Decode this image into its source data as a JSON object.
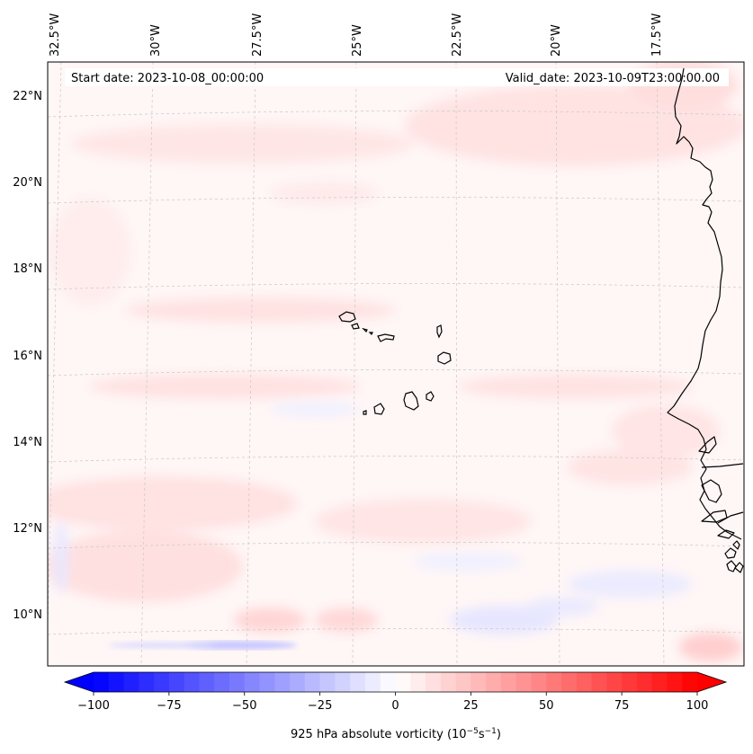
{
  "header": {
    "start_date": "Start date: 2023-10-08_00:00:00",
    "valid_date": "Valid_date: 2023-10-09T23:00:00.00"
  },
  "longitude_labels": [
    "32.5°W",
    "30°W",
    "27.5°W",
    "25°W",
    "22.5°W",
    "20°W",
    "17.5°W"
  ],
  "latitude_labels": [
    "22°N",
    "20°N",
    "18°N",
    "16°N",
    "14°N",
    "12°N",
    "10°N"
  ],
  "colorbar": {
    "label": "925 hPa absolute vorticity (10",
    "label_exp1": "−5",
    "label_mid": "s",
    "label_exp2": "−1",
    "label_end": ")",
    "ticks": [
      "−100",
      "−75",
      "−50",
      "−25",
      "0",
      "25",
      "50",
      "75",
      "100"
    ],
    "range": [
      -100,
      100
    ],
    "step": 5,
    "colors": {
      "negative": "#0000ff",
      "zero": "#ffffff",
      "positive": "#ff0000"
    }
  },
  "colors": {
    "coastline": "#000000",
    "gridline": "#c8c8c8",
    "background_field": "#fff5f5"
  }
}
